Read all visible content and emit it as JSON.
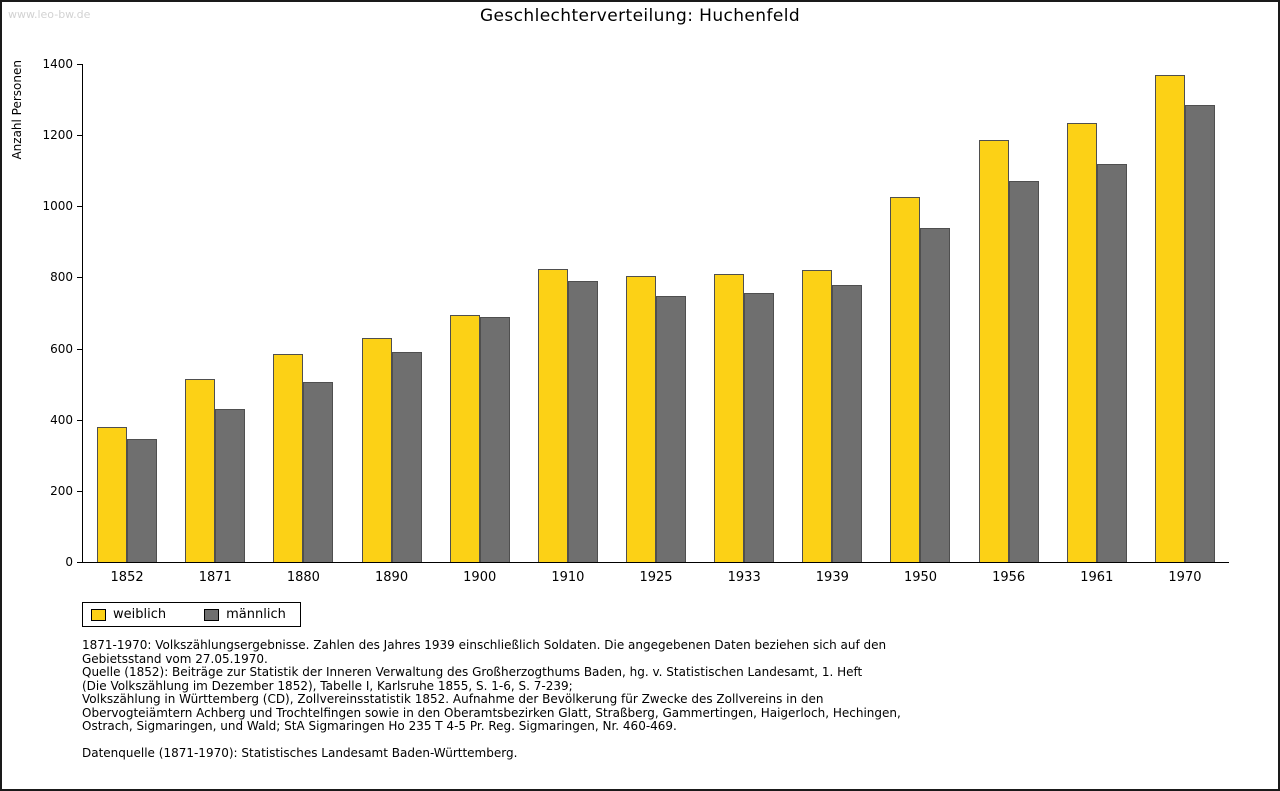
{
  "watermark": "www.leo-bw.de",
  "chart_data": {
    "type": "bar",
    "title": "Geschlechterverteilung: Huchenfeld",
    "xlabel": "",
    "ylabel": "Anzahl Personen",
    "ylim": [
      0,
      1400
    ],
    "ytick_step": 200,
    "grid": false,
    "legend_position": "bottom-left",
    "bar_border": "#4f4f4f",
    "categories": [
      "1852",
      "1871",
      "1880",
      "1890",
      "1900",
      "1910",
      "1925",
      "1933",
      "1939",
      "1950",
      "1956",
      "1961",
      "1970"
    ],
    "series": [
      {
        "name": "weiblich",
        "color": "#FCD116",
        "values": [
          380,
          515,
          585,
          630,
          695,
          825,
          805,
          810,
          820,
          1025,
          1185,
          1235,
          1370
        ]
      },
      {
        "name": "männlich",
        "color": "#6F6F6F",
        "values": [
          345,
          430,
          505,
          590,
          690,
          790,
          748,
          755,
          780,
          940,
          1070,
          1120,
          1285
        ]
      }
    ]
  },
  "notes": {
    "lines": [
      "1871-1970: Volkszählungsergebnisse. Zahlen des Jahres 1939 einschließlich Soldaten. Die angegebenen Daten beziehen sich auf den",
      "Gebietsstand vom 27.05.1970.",
      "Quelle (1852): Beiträge zur Statistik der Inneren Verwaltung des Großherzogthums Baden, hg. v. Statistischen Landesamt, 1. Heft",
      "(Die Volkszählung im Dezember 1852), Tabelle I, Karlsruhe 1855, S. 1-6, S. 7-239;",
      "Volkszählung in Württemberg (CD), Zollvereinsstatistik 1852. Aufnahme der Bevölkerung für Zwecke des Zollvereins in den",
      "Obervogteiämtern Achberg und Trochtelfingen sowie in den Oberamtsbezirken Glatt, Straßberg, Gammertingen, Haigerloch, Hechingen,",
      "Ostrach, Sigmaringen, und Wald; StA Sigmaringen Ho 235 T 4-5 Pr. Reg. Sigmaringen, Nr. 460-469."
    ],
    "source_line": "Datenquelle (1871-1970): Statistisches Landesamt Baden-Württemberg."
  }
}
